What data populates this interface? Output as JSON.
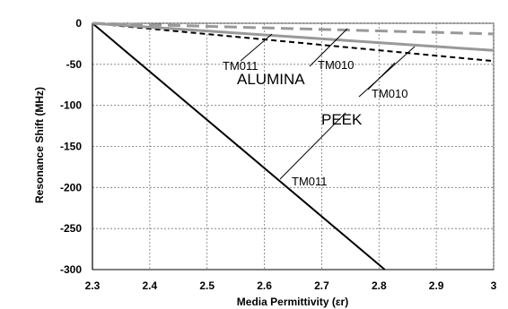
{
  "chart_data": {
    "type": "line",
    "title": "",
    "xlabel": "Media Permittivity (εr)",
    "ylabel": "Resonance Shift (MHz)",
    "xlim": [
      2.3,
      3.0
    ],
    "ylim": [
      -300,
      0
    ],
    "x_ticks": [
      "2.3",
      "2.4",
      "2.5",
      "2.6",
      "2.7",
      "2.8",
      "2.9",
      "3"
    ],
    "y_ticks": [
      "0",
      "-50",
      "-100",
      "-150",
      "-200",
      "-250",
      "-300"
    ],
    "grid": true,
    "series": [
      {
        "label": "PEEK TM011",
        "style": "solid",
        "color": "#000000",
        "x": [
          2.3,
          2.81
        ],
        "y": [
          0,
          -300
        ]
      },
      {
        "label": "PEEK TM010",
        "style": "dashed",
        "color": "#000000",
        "x": [
          2.3,
          3.0
        ],
        "y": [
          0,
          -46
        ]
      },
      {
        "label": "ALUMINA TM011",
        "style": "solid",
        "color": "#999999",
        "x": [
          2.3,
          3.0
        ],
        "y": [
          0,
          -33
        ]
      },
      {
        "label": "ALUMINA TM010",
        "style": "dashed",
        "color": "#999999",
        "x": [
          2.3,
          3.0
        ],
        "y": [
          0,
          -13
        ]
      }
    ],
    "annotations": {
      "tm011_top": "TM011",
      "tm010_top": "TM010",
      "alumina": "ALUMINA",
      "tm010_mid": "TM010",
      "peek": "PEEK",
      "tm011_bottom": "TM011"
    }
  }
}
